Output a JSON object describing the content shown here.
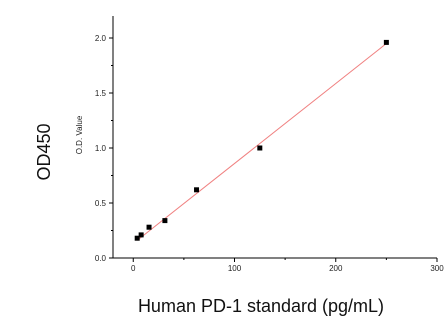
{
  "chart_data": {
    "type": "scatter",
    "title": "",
    "xlabel": "Human PD-1 standard (pg/mL)",
    "ylabel_outer": "OD450",
    "ylabel_inner": "O.D. Value",
    "xlim": [
      -20,
      300
    ],
    "ylim": [
      0,
      2.2
    ],
    "x_ticks": [
      "0",
      "100",
      "200",
      "300"
    ],
    "y_ticks": [
      "0.0",
      "0.5",
      "1.0",
      "1.5",
      "2.0"
    ],
    "grid": false,
    "legend": "none",
    "series": [
      {
        "points": [
          {
            "x": 3.9,
            "y": 0.18
          },
          {
            "x": 7.8,
            "y": 0.21
          },
          {
            "x": 15.6,
            "y": 0.28
          },
          {
            "x": 31.25,
            "y": 0.34
          },
          {
            "x": 62.5,
            "y": 0.62
          },
          {
            "x": 125,
            "y": 1.0
          },
          {
            "x": 250,
            "y": 1.96
          }
        ],
        "marker_color": "#000000"
      }
    ],
    "fit_line": {
      "x": [
        3.9,
        250
      ],
      "y": [
        0.16,
        1.95
      ],
      "color": "#f08080"
    }
  }
}
